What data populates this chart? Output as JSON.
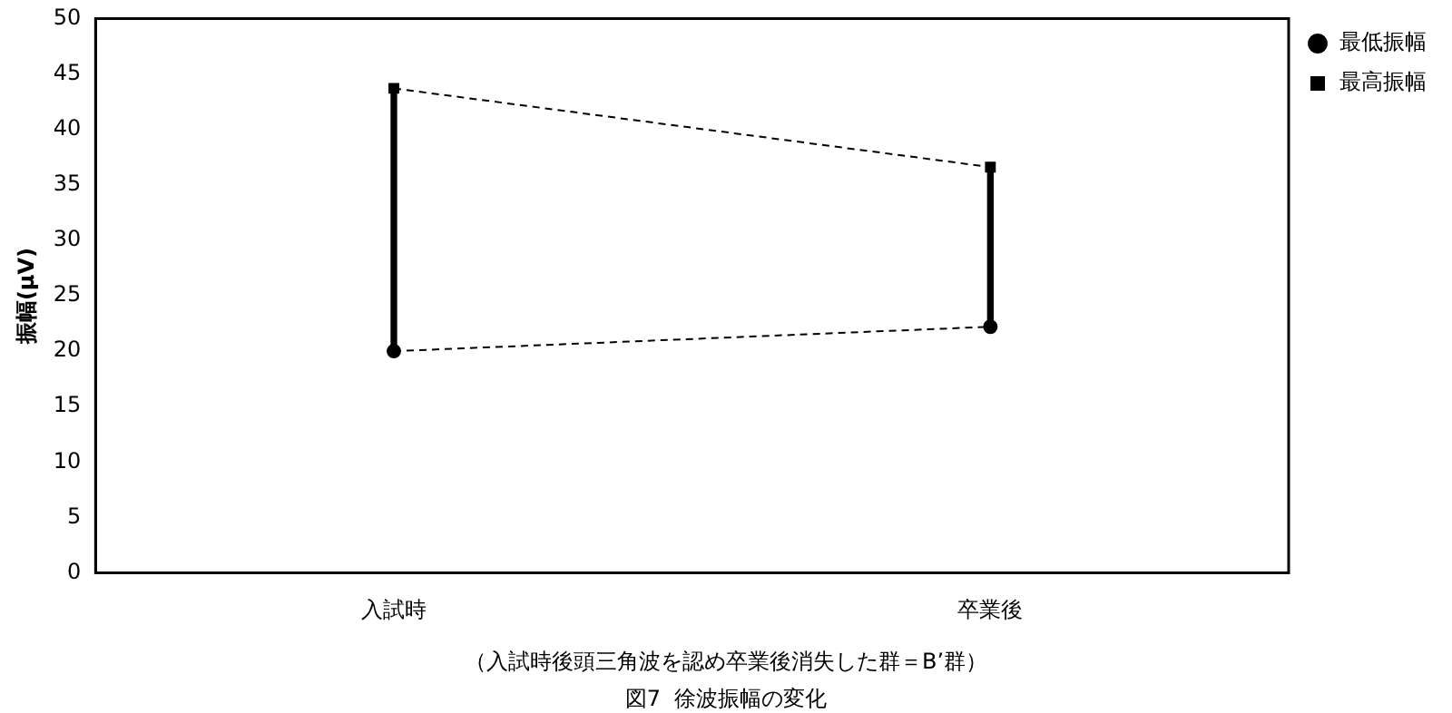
{
  "chart_data": {
    "type": "line",
    "title": "図7  徐波振幅の変化",
    "subtitle": "（入試時後頭三角波を認め卒業後消失した群＝B’群）",
    "ylabel": "振幅(μV)",
    "categories": [
      "入試時",
      "卒業後"
    ],
    "series": [
      {
        "type": "bar",
        "color": "#000000",
        "base": [
          20,
          22.2
        ],
        "values": [
          23.7,
          14.4
        ]
      },
      {
        "name": "最低振幅",
        "color": "#000000",
        "marker": "circle",
        "values": [
          20,
          22.2
        ]
      },
      {
        "name": "最高振幅",
        "color": "#000000",
        "marker": "square",
        "values": [
          43.7,
          36.6
        ]
      }
    ],
    "ylim": [
      0,
      50
    ],
    "yticks": [
      0,
      5,
      10,
      15,
      20,
      25,
      30,
      35,
      40,
      45,
      50
    ],
    "grid": false,
    "legend": "top right",
    "line_style": "dashed"
  }
}
